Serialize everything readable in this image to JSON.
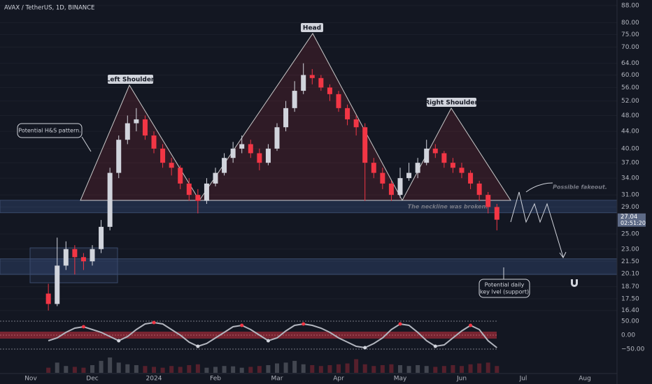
{
  "chart_data": {
    "type": "candlestick",
    "title": "AVAX / TetherUS, 1D, BINANCE",
    "categories": [
      null,
      null,
      null,
      "Nov",
      null,
      null,
      null,
      null,
      null,
      null,
      "Dec",
      null,
      null,
      null,
      null,
      null,
      null,
      "2024",
      null,
      null,
      null,
      null,
      null,
      null,
      "Feb",
      null,
      null,
      null,
      null,
      null,
      null,
      "Mar",
      null,
      null,
      null,
      null,
      null,
      null,
      "Apr",
      null,
      null,
      null,
      null,
      null,
      null,
      "May",
      null,
      null,
      null,
      null,
      null,
      null,
      "Jun",
      null,
      null,
      null,
      null,
      null,
      null,
      "Jul",
      null,
      null,
      null,
      null,
      null,
      null,
      "Aug",
      null,
      null,
      null
    ],
    "open": [
      null,
      null,
      null,
      null,
      null,
      18,
      17,
      21,
      23,
      22,
      21.5,
      23,
      26,
      35,
      42,
      46,
      47,
      43,
      40,
      37,
      36,
      33,
      31,
      30,
      33,
      35,
      38,
      40,
      41,
      39,
      37,
      40,
      45,
      50,
      55,
      60,
      59,
      56,
      54,
      50,
      47,
      45,
      37,
      35,
      33,
      31,
      34,
      35,
      37,
      40,
      39,
      37,
      36,
      35,
      33,
      31,
      29,
      null,
      null,
      null,
      null,
      null,
      null,
      null,
      null,
      null,
      null,
      null,
      null,
      null
    ],
    "high": [
      null,
      null,
      null,
      null,
      null,
      19,
      24.5,
      24,
      23.5,
      22.5,
      23.5,
      27,
      36,
      43,
      48,
      50,
      48,
      44,
      41,
      38,
      36.5,
      34,
      32,
      34,
      36,
      39,
      41.5,
      43,
      42,
      40,
      41,
      46,
      52,
      58,
      64,
      62,
      60,
      57,
      55,
      51,
      48,
      46,
      38,
      36,
      33.5,
      36,
      37,
      38,
      42,
      41,
      39.5,
      38,
      37,
      35.5,
      33.5,
      31.5,
      29.5,
      null,
      null,
      null,
      null,
      null,
      null,
      null,
      null,
      null,
      null,
      null,
      null,
      null
    ],
    "low": [
      null,
      null,
      null,
      null,
      null,
      16.4,
      16.8,
      20.5,
      20,
      20.5,
      21,
      22.5,
      25.5,
      34,
      41,
      44,
      42,
      39,
      36,
      34.5,
      32,
      30,
      28,
      29.5,
      32.5,
      34.5,
      37,
      39,
      38,
      35.5,
      36.5,
      39.5,
      44,
      49,
      54,
      57,
      55,
      52,
      49,
      45.5,
      43,
      30,
      34,
      32,
      30,
      30.5,
      33.5,
      34,
      36.5,
      38,
      36,
      35,
      34,
      32,
      30,
      28,
      25.5,
      null,
      null,
      null,
      null,
      null,
      null,
      null,
      null,
      null,
      null,
      null,
      null,
      null
    ],
    "close": [
      null,
      null,
      null,
      null,
      null,
      17,
      21,
      23,
      22,
      21.5,
      23,
      26,
      35,
      42,
      46,
      47,
      43,
      40,
      37,
      36,
      33,
      31,
      30,
      33,
      35,
      38,
      40,
      41,
      39,
      37,
      40,
      45,
      50,
      55,
      60,
      59,
      56,
      54,
      50,
      47,
      45,
      37,
      35,
      33,
      31,
      34,
      35,
      37,
      40,
      39,
      37,
      36,
      35,
      33,
      31,
      29,
      27.04,
      null,
      null,
      null,
      null,
      null,
      null,
      null,
      null,
      null,
      null,
      null,
      null,
      null
    ],
    "up_color": "#d1d4dc",
    "down_color": "#f23645",
    "ylim": [
      16.07,
      90.7
    ],
    "log_scale": true,
    "yticks": [
      {
        "value": 88,
        "label": "88.00"
      },
      {
        "value": 80,
        "label": "80.00"
      },
      {
        "value": 75,
        "label": "75.00"
      },
      {
        "value": 70,
        "label": "70.00"
      },
      {
        "value": 64,
        "label": "64.00"
      },
      {
        "value": 60,
        "label": "60.00"
      },
      {
        "value": 56,
        "label": "56.00"
      },
      {
        "value": 52,
        "label": "52.00"
      },
      {
        "value": 48,
        "label": "48.00"
      },
      {
        "value": 44,
        "label": "44.00"
      },
      {
        "value": 40,
        "label": "40.00"
      },
      {
        "value": 37,
        "label": "37.00"
      },
      {
        "value": 34,
        "label": "34.00"
      },
      {
        "value": 31,
        "label": "31.00"
      },
      {
        "value": 29,
        "label": "29.00"
      },
      {
        "value": 25,
        "label": "25.00"
      },
      {
        "value": 23,
        "label": "23.00"
      },
      {
        "value": 21.5,
        "label": "21.50"
      },
      {
        "value": 20.1,
        "label": "20.10"
      },
      {
        "value": 18.7,
        "label": "18.70"
      },
      {
        "value": 17.5,
        "label": "17.50"
      },
      {
        "value": 16.4,
        "label": "16.40"
      }
    ],
    "countdown": "02:51:20",
    "zones": [
      [
        28.1,
        30.1
      ],
      [
        20.0,
        21.8
      ]
    ],
    "annotations": {
      "head": "Head",
      "left_shoulder": "Left Shoulder",
      "right_shoulder": "Right Shoulder",
      "pattern": "Potential H&S pattern.",
      "neckline": "The neckline was broken.",
      "fakeout": "Possible fakeout.",
      "support": [
        "Potential daily",
        "key lvel (support)"
      ]
    },
    "oscillator": {
      "ylim": [
        -70,
        70
      ],
      "yticks": [
        {
          "value": 50,
          "label": "50.00"
        },
        {
          "value": 0,
          "label": "0.00"
        },
        {
          "value": -50,
          "label": "−50.00"
        }
      ],
      "values": [
        null,
        null,
        null,
        null,
        null,
        -20,
        -10,
        10,
        25,
        30,
        20,
        10,
        -5,
        -20,
        -5,
        20,
        40,
        45,
        40,
        20,
        0,
        -25,
        -40,
        -30,
        -10,
        10,
        30,
        35,
        20,
        0,
        -20,
        -10,
        15,
        35,
        40,
        35,
        25,
        10,
        -10,
        -25,
        -40,
        -45,
        -30,
        -10,
        20,
        40,
        35,
        10,
        -20,
        -40,
        -35,
        -10,
        15,
        35,
        20,
        -20,
        -45,
        null,
        null,
        null,
        null,
        null,
        null,
        null,
        null,
        null,
        null,
        null,
        null,
        null
      ]
    },
    "volume": [
      null,
      null,
      null,
      null,
      null,
      30,
      60,
      40,
      35,
      30,
      45,
      70,
      90,
      60,
      50,
      45,
      40,
      35,
      30,
      40,
      35,
      45,
      50,
      30,
      35,
      40,
      38,
      30,
      35,
      40,
      45,
      55,
      60,
      70,
      50,
      45,
      40,
      45,
      50,
      55,
      80,
      50,
      40,
      45,
      50,
      45,
      40,
      45,
      40,
      35,
      40,
      45,
      40,
      50,
      55,
      60,
      40,
      null,
      null,
      null,
      null,
      null,
      null,
      null,
      null,
      null,
      null,
      null,
      null,
      null
    ]
  }
}
